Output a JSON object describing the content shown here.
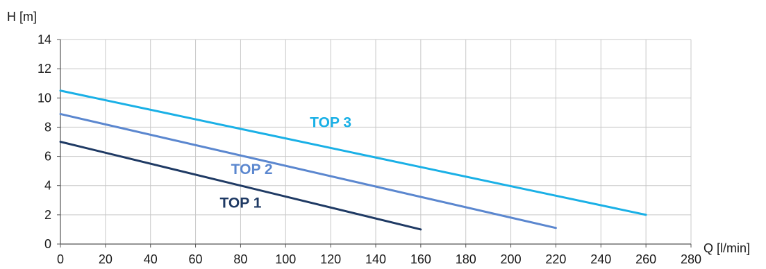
{
  "chart_data": {
    "type": "line",
    "xlabel": "Q [l/min]",
    "ylabel": "H [m]",
    "xlim": [
      0,
      280
    ],
    "ylim": [
      0,
      14
    ],
    "x_ticks": [
      "0",
      "20",
      "40",
      "60",
      "80",
      "100",
      "120",
      "140",
      "160",
      "180",
      "200",
      "220",
      "240",
      "260",
      "280"
    ],
    "y_ticks": [
      "0",
      "2",
      "4",
      "6",
      "8",
      "10",
      "12",
      "14"
    ],
    "grid": true,
    "series": [
      {
        "name": "TOP 1",
        "color": "#1f3a64",
        "x": [
          0,
          160
        ],
        "y": [
          7.0,
          1.0
        ],
        "label_at": [
          80,
          2.5
        ]
      },
      {
        "name": "TOP 2",
        "color": "#5b87cf",
        "x": [
          0,
          220
        ],
        "y": [
          8.9,
          1.1
        ],
        "label_at": [
          85,
          4.8
        ]
      },
      {
        "name": "TOP 3",
        "color": "#1ab0e6",
        "x": [
          0,
          260
        ],
        "y": [
          10.5,
          2.0
        ],
        "label_at": [
          120,
          8.0
        ]
      }
    ]
  }
}
